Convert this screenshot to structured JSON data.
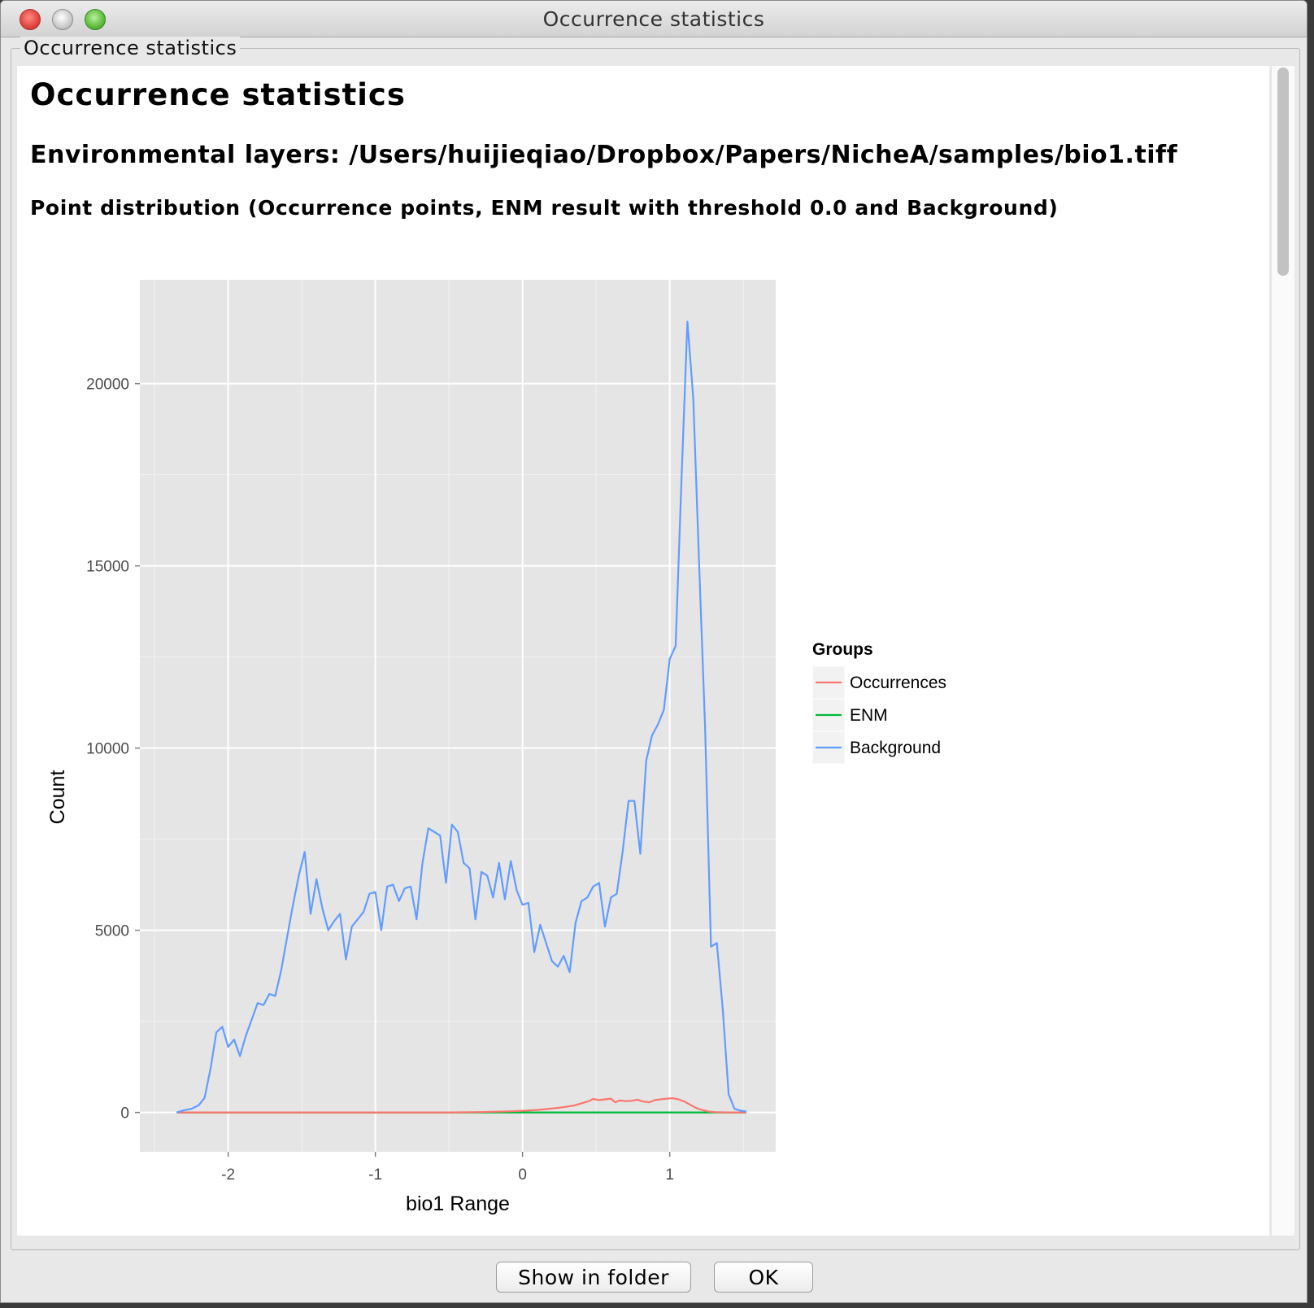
{
  "window": {
    "title": "Occurrence statistics"
  },
  "groupbox": {
    "label": "Occurrence statistics"
  },
  "report": {
    "heading": "Occurrence statistics",
    "layers_line": "Environmental layers: /Users/huijieqiao/Dropbox/Papers/NicheA/samples/bio1.tiff",
    "distribution_line": "Point distribution (Occurrence points, ENM result with threshold 0.0 and Background)"
  },
  "buttons": {
    "show_in_folder": "Show in folder",
    "ok": "OK"
  },
  "chart_data": {
    "type": "line",
    "title": "",
    "xlabel": "bio1 Range",
    "ylabel": "Count",
    "xlim": [
      -2.6,
      1.72
    ],
    "ylim": [
      -1080,
      22850
    ],
    "xticks": [
      -2,
      -1,
      0,
      1
    ],
    "xtick_labels": [
      "-2",
      "-1",
      "0",
      "1"
    ],
    "yticks": [
      0,
      5000,
      10000,
      15000,
      20000
    ],
    "ytick_labels": [
      "0",
      "5000",
      "10000",
      "15000",
      "20000"
    ],
    "grid": true,
    "legend": {
      "title": "Groups",
      "position": "right"
    },
    "series": [
      {
        "name": "Occurrences",
        "color": "#F8766D",
        "x": [
          -2.35,
          -2.0,
          -1.5,
          -1.0,
          -0.5,
          -0.3,
          -0.1,
          0.0,
          0.1,
          0.15,
          0.2,
          0.25,
          0.3,
          0.35,
          0.4,
          0.45,
          0.48,
          0.52,
          0.56,
          0.6,
          0.63,
          0.66,
          0.7,
          0.74,
          0.78,
          0.82,
          0.86,
          0.9,
          0.94,
          0.98,
          1.02,
          1.06,
          1.1,
          1.14,
          1.18,
          1.22,
          1.26,
          1.3,
          1.4,
          1.52
        ],
        "y": [
          0,
          0,
          0,
          0,
          0,
          10,
          30,
          45,
          70,
          90,
          110,
          130,
          160,
          190,
          250,
          310,
          370,
          340,
          360,
          380,
          280,
          330,
          310,
          320,
          350,
          300,
          280,
          340,
          360,
          380,
          390,
          360,
          300,
          210,
          120,
          70,
          30,
          10,
          0,
          0
        ]
      },
      {
        "name": "ENM",
        "color": "#00BA38",
        "x": [
          -2.35,
          1.52
        ],
        "y": [
          0,
          0
        ]
      },
      {
        "name": "Background",
        "color": "#619CFF",
        "x": [
          -2.35,
          -2.3,
          -2.25,
          -2.2,
          -2.16,
          -2.12,
          -2.08,
          -2.04,
          -2.0,
          -1.96,
          -1.92,
          -1.88,
          -1.84,
          -1.8,
          -1.76,
          -1.72,
          -1.68,
          -1.64,
          -1.6,
          -1.56,
          -1.52,
          -1.48,
          -1.44,
          -1.4,
          -1.36,
          -1.32,
          -1.28,
          -1.24,
          -1.2,
          -1.16,
          -1.12,
          -1.08,
          -1.04,
          -1.0,
          -0.96,
          -0.92,
          -0.88,
          -0.84,
          -0.8,
          -0.76,
          -0.72,
          -0.68,
          -0.64,
          -0.6,
          -0.56,
          -0.52,
          -0.48,
          -0.44,
          -0.4,
          -0.36,
          -0.32,
          -0.28,
          -0.24,
          -0.2,
          -0.16,
          -0.12,
          -0.08,
          -0.04,
          0.0,
          0.04,
          0.08,
          0.12,
          0.16,
          0.2,
          0.24,
          0.28,
          0.32,
          0.36,
          0.4,
          0.44,
          0.48,
          0.52,
          0.56,
          0.6,
          0.64,
          0.68,
          0.72,
          0.76,
          0.8,
          0.84,
          0.88,
          0.92,
          0.96,
          1.0,
          1.04,
          1.08,
          1.12,
          1.16,
          1.2,
          1.24,
          1.28,
          1.32,
          1.36,
          1.4,
          1.44,
          1.48,
          1.52
        ],
        "y": [
          0,
          60,
          100,
          200,
          400,
          1200,
          2200,
          2350,
          1800,
          2000,
          1550,
          2100,
          2550,
          3000,
          2950,
          3250,
          3200,
          3900,
          4800,
          5700,
          6500,
          7150,
          5450,
          6400,
          5600,
          5000,
          5250,
          5450,
          4200,
          5100,
          5300,
          5500,
          6000,
          6050,
          5000,
          6200,
          6250,
          5800,
          6150,
          6200,
          5300,
          6850,
          7800,
          7700,
          7600,
          6300,
          7900,
          7700,
          6850,
          6700,
          5300,
          6600,
          6500,
          5900,
          6850,
          5850,
          6900,
          6100,
          5700,
          5750,
          4400,
          5150,
          4650,
          4150,
          4000,
          4300,
          3850,
          5200,
          5800,
          5900,
          6200,
          6300,
          5100,
          5900,
          6000,
          7150,
          8550,
          8550,
          7100,
          9650,
          10350,
          10650,
          11050,
          12450,
          12800,
          17350,
          21700,
          19600,
          15000,
          10600,
          4550,
          4650,
          2850,
          500,
          100,
          50,
          30
        ]
      }
    ]
  }
}
